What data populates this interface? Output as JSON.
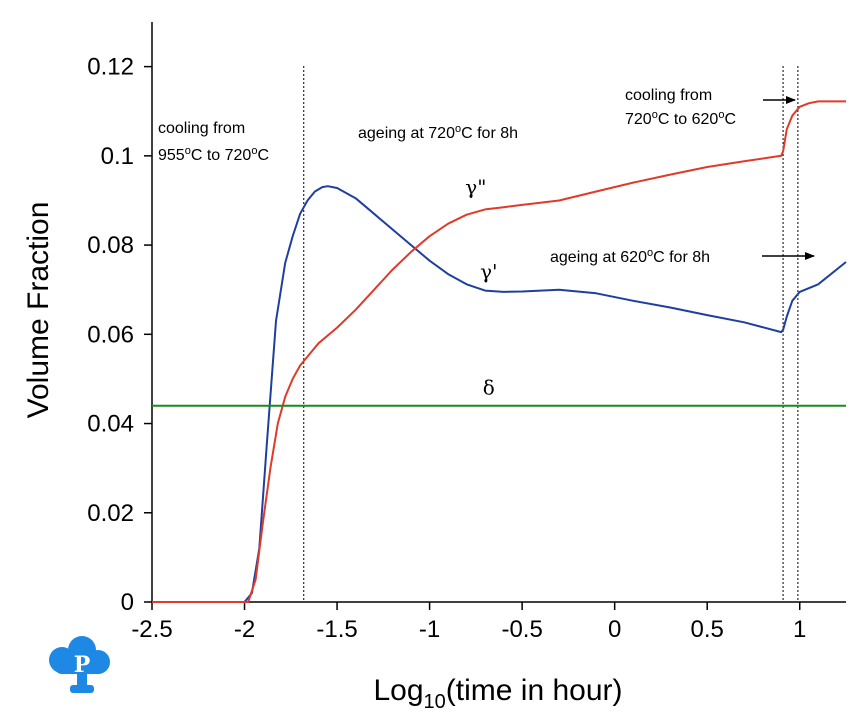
{
  "chart_data": {
    "type": "line",
    "xlabel_main": "Log",
    "xlabel_sub": "10",
    "xlabel_rest": "(time in hour)",
    "ylabel": "Volume Fraction",
    "xlim": [
      -2.5,
      1.25
    ],
    "ylim": [
      0,
      0.13
    ],
    "xticks": [
      -2.5,
      -2,
      -1.5,
      -1,
      -0.5,
      0,
      0.5,
      1
    ],
    "xtick_labels": [
      "-2.5",
      "-2",
      "-1.5",
      "-1",
      "-0.5",
      "0",
      "0.5",
      "1"
    ],
    "yticks": [
      0,
      0.02,
      0.04,
      0.06,
      0.08,
      0.1,
      0.12
    ],
    "ytick_labels": [
      "0",
      "0.02",
      "0.04",
      "0.06",
      "0.08",
      "0.1",
      "0.12"
    ],
    "vlines": [
      -1.68,
      0.91,
      0.99
    ],
    "series": [
      {
        "name": "γ'",
        "color": "#1f3fa0",
        "x": [
          -2.5,
          -2.0,
          -1.96,
          -1.92,
          -1.88,
          -1.83,
          -1.78,
          -1.74,
          -1.7,
          -1.66,
          -1.62,
          -1.58,
          -1.55,
          -1.5,
          -1.4,
          -1.3,
          -1.2,
          -1.1,
          -1.0,
          -0.9,
          -0.8,
          -0.7,
          -0.6,
          -0.5,
          -0.3,
          -0.1,
          0.1,
          0.3,
          0.5,
          0.7,
          0.9,
          0.91,
          0.93,
          0.96,
          1.0,
          1.1,
          1.25
        ],
        "y": [
          0,
          0,
          0.002,
          0.012,
          0.035,
          0.063,
          0.076,
          0.082,
          0.087,
          0.09,
          0.092,
          0.093,
          0.0932,
          0.0928,
          0.0905,
          0.087,
          0.0835,
          0.08,
          0.0765,
          0.0735,
          0.0712,
          0.0698,
          0.0695,
          0.0696,
          0.07,
          0.0692,
          0.0675,
          0.066,
          0.0643,
          0.0627,
          0.0605,
          0.061,
          0.064,
          0.0675,
          0.0695,
          0.0712,
          0.0762
        ]
      },
      {
        "name": "γ\"",
        "color": "#e03a2a",
        "x": [
          -2.5,
          -1.98,
          -1.94,
          -1.9,
          -1.86,
          -1.82,
          -1.78,
          -1.74,
          -1.7,
          -1.65,
          -1.6,
          -1.5,
          -1.4,
          -1.3,
          -1.2,
          -1.1,
          -1.0,
          -0.9,
          -0.8,
          -0.7,
          -0.6,
          -0.5,
          -0.3,
          -0.1,
          0.1,
          0.3,
          0.5,
          0.7,
          0.9,
          0.91,
          0.93,
          0.96,
          1.0,
          1.05,
          1.1,
          1.25
        ],
        "y": [
          0,
          0,
          0.005,
          0.018,
          0.03,
          0.04,
          0.046,
          0.05,
          0.053,
          0.0555,
          0.058,
          0.0615,
          0.0655,
          0.07,
          0.0745,
          0.0785,
          0.082,
          0.0848,
          0.0868,
          0.088,
          0.0885,
          0.089,
          0.09,
          0.092,
          0.094,
          0.0958,
          0.0975,
          0.0988,
          0.1,
          0.101,
          0.106,
          0.109,
          0.111,
          0.1118,
          0.1122,
          0.1122
        ]
      },
      {
        "name": "δ",
        "color": "#1a8a1a",
        "x": [
          -2.5,
          1.25
        ],
        "y": [
          0.044,
          0.044
        ]
      }
    ],
    "curve_labels": [
      {
        "text": "γ\"",
        "x": -0.75,
        "y": 0.0915
      },
      {
        "text": "γ'",
        "x": -0.68,
        "y": 0.0725
      },
      {
        "text": "δ",
        "x": -0.68,
        "y": 0.0465
      }
    ],
    "annotations": {
      "a1_line1": "cooling from",
      "a1_line2_num1": "955",
      "a1_line2_deg1": "o",
      "a1_line2_mid": "C to 720",
      "a1_line2_deg2": "o",
      "a1_line2_end": "C",
      "a2_pre": "ageing at 720",
      "a2_deg": "o",
      "a2_post": "C for 8h",
      "a3_line1": "cooling from",
      "a3_line2_num1": "720",
      "a3_line2_deg1": "o",
      "a3_line2_mid": "C to 620",
      "a3_line2_deg2": "o",
      "a3_line2_end": "C",
      "a4_pre": "ageing at 620",
      "a4_deg": "o",
      "a4_post": "C for 8h"
    },
    "logo_letter": "P"
  }
}
